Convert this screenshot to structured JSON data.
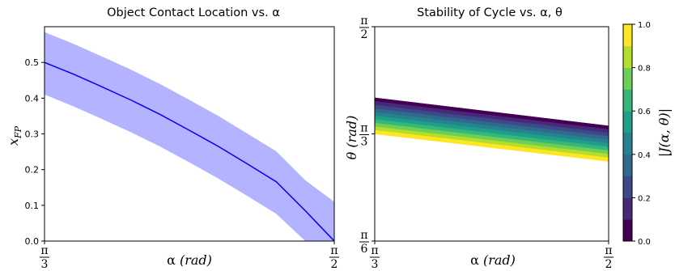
{
  "chart_data": [
    {
      "type": "line",
      "title": "Object Contact Location vs. α",
      "xlabel_main": "α",
      "xlabel_unit": "(rad)",
      "ylabel_main": "x",
      "ylabel_sub": "FP",
      "xlim": [
        1.0472,
        1.5708
      ],
      "ylim": [
        0.0,
        0.6
      ],
      "x_ticks": [
        {
          "value": 1.0472,
          "num": "π",
          "den": "3"
        },
        {
          "value": 1.5708,
          "num": "π",
          "den": "2"
        }
      ],
      "y_ticks": [
        {
          "value": 0.0,
          "label": "0.0"
        },
        {
          "value": 0.1,
          "label": "0.1"
        },
        {
          "value": 0.2,
          "label": "0.2"
        },
        {
          "value": 0.3,
          "label": "0.3"
        },
        {
          "value": 0.4,
          "label": "0.4"
        },
        {
          "value": 0.5,
          "label": "0.5"
        }
      ],
      "line_color": "#0000ff",
      "band_color": "#b3b3ff",
      "series": [
        {
          "x": [
            1.0472,
            1.0996,
            1.1519,
            1.2043,
            1.2566,
            1.309,
            1.3614,
            1.4137,
            1.4661,
            1.5184,
            1.5708
          ],
          "y": [
            0.5,
            0.467,
            0.431,
            0.394,
            0.354,
            0.31,
            0.265,
            0.216,
            0.166,
            0.085,
            0.0
          ],
          "y_lower": [
            0.41,
            0.377,
            0.341,
            0.304,
            0.264,
            0.22,
            0.175,
            0.126,
            0.076,
            0.0,
            0.0
          ],
          "y_upper": [
            0.585,
            0.552,
            0.516,
            0.479,
            0.439,
            0.395,
            0.35,
            0.301,
            0.251,
            0.17,
            0.11
          ]
        }
      ]
    },
    {
      "type": "heatmap",
      "title": "Stability of Cycle vs. α, θ",
      "xlabel_main": "α",
      "xlabel_unit": "(rad)",
      "ylabel_main": "θ",
      "ylabel_unit": "(rad)",
      "xlim": [
        1.0472,
        1.5708
      ],
      "ylim": [
        0.5236,
        1.5708
      ],
      "x_ticks": [
        {
          "value": 1.0472,
          "num": "π",
          "den": "3"
        },
        {
          "value": 1.5708,
          "num": "π",
          "den": "2"
        }
      ],
      "y_ticks": [
        {
          "value": 0.5236,
          "num": "π",
          "den": "6"
        },
        {
          "value": 1.0472,
          "num": "π",
          "den": "3"
        },
        {
          "value": 1.5708,
          "num": "π",
          "den": "2"
        }
      ],
      "region": {
        "theta_bottom": [
          1.0472,
          0.9127
        ],
        "theta_top": [
          1.2236,
          1.0865
        ]
      },
      "levels": [
        0.0,
        0.1,
        0.2,
        0.3,
        0.4,
        0.5,
        0.6,
        0.7,
        0.8,
        0.9,
        1.0
      ],
      "colormap": [
        "#440154",
        "#482878",
        "#3e4989",
        "#31688e",
        "#26828e",
        "#1f9e89",
        "#35b779",
        "#6ece58",
        "#b5de2b",
        "#fde725"
      ],
      "colorbar": {
        "label": "|J(α, θ)|",
        "ticks": [
          "0.0",
          "0.2",
          "0.4",
          "0.6",
          "0.8",
          "1.0"
        ],
        "tick_values": [
          0.0,
          0.2,
          0.4,
          0.6,
          0.8,
          1.0
        ]
      }
    }
  ]
}
